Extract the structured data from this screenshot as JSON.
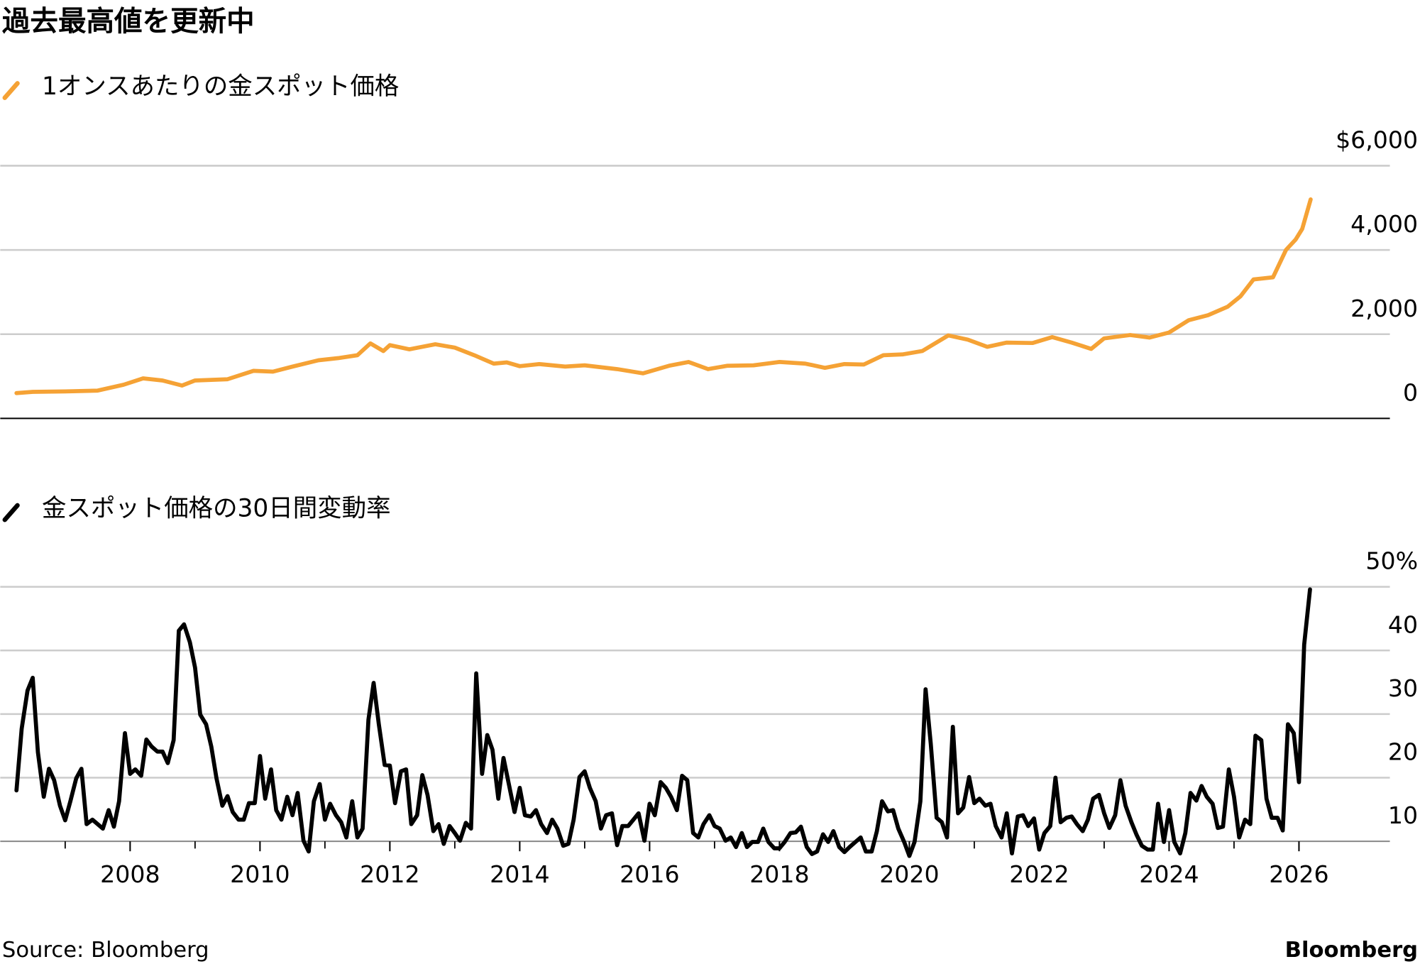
{
  "title": "過去最高値を更新中",
  "source": "Source: Bloomberg",
  "brand": "Bloomberg",
  "chart_data": [
    {
      "type": "line",
      "x": [
        2006.25,
        2006.5,
        2007,
        2007.5,
        2007.9,
        2008.2,
        2008.5,
        2008.8,
        2009,
        2009.5,
        2009.9,
        2010.2,
        2010.5,
        2010.9,
        2011.2,
        2011.5,
        2011.7,
        2011.9,
        2012,
        2012.3,
        2012.7,
        2013,
        2013.3,
        2013.6,
        2013.8,
        2014,
        2014.3,
        2014.7,
        2015,
        2015.5,
        2015.9,
        2016.3,
        2016.6,
        2016.9,
        2017.2,
        2017.6,
        2018,
        2018.4,
        2018.7,
        2019,
        2019.3,
        2019.6,
        2019.9,
        2020.2,
        2020.6,
        2020.9,
        2021.2,
        2021.5,
        2021.9,
        2022.2,
        2022.5,
        2022.8,
        2023,
        2023.4,
        2023.7,
        2024,
        2024.3,
        2024.6,
        2024.9,
        2025.1,
        2025.3,
        2025.6,
        2025.8,
        2025.95,
        2026.05,
        2026.18
      ],
      "series": [
        {
          "name": "1オンスあたりの金スポット価格",
          "color": "#f5a235",
          "values": [
            600,
            630,
            640,
            660,
            800,
            950,
            900,
            780,
            900,
            930,
            1130,
            1110,
            1230,
            1380,
            1430,
            1500,
            1780,
            1600,
            1740,
            1640,
            1760,
            1680,
            1500,
            1300,
            1330,
            1240,
            1290,
            1230,
            1260,
            1170,
            1070,
            1250,
            1340,
            1170,
            1250,
            1260,
            1340,
            1300,
            1200,
            1290,
            1280,
            1500,
            1520,
            1600,
            1970,
            1870,
            1700,
            1800,
            1790,
            1930,
            1800,
            1650,
            1900,
            1980,
            1920,
            2040,
            2330,
            2450,
            2650,
            2900,
            3300,
            3350,
            4000,
            4250,
            4500,
            5200
          ]
        }
      ],
      "xlim": [
        2006,
        2027.4
      ],
      "ylim": [
        0,
        6000
      ],
      "yticks": [
        0,
        {
          "value": 2000,
          "label": "2,000"
        },
        {
          "value": 4000,
          "label": "4,000"
        },
        {
          "value": 6000,
          "label": "$6,000"
        }
      ],
      "grid": true
    },
    {
      "type": "line",
      "x": [
        2006.25,
        2006.33,
        2006.42,
        2006.5,
        2006.58,
        2006.67,
        2006.75,
        2006.83,
        2006.92,
        2007,
        2007.08,
        2007.17,
        2007.25,
        2007.33,
        2007.42,
        2007.5,
        2007.58,
        2007.67,
        2007.75,
        2007.83,
        2007.92,
        2008,
        2008.08,
        2008.17,
        2008.25,
        2008.33,
        2008.42,
        2008.5,
        2008.58,
        2008.67,
        2008.75,
        2008.83,
        2008.92,
        2009,
        2009.08,
        2009.17,
        2009.25,
        2009.33,
        2009.42,
        2009.5,
        2009.58,
        2009.67,
        2009.75,
        2009.83,
        2009.92,
        2010,
        2010.08,
        2010.17,
        2010.25,
        2010.33,
        2010.42,
        2010.5,
        2010.58,
        2010.67,
        2010.75,
        2010.83,
        2010.92,
        2011,
        2011.08,
        2011.17,
        2011.25,
        2011.33,
        2011.42,
        2011.5,
        2011.58,
        2011.67,
        2011.75,
        2011.83,
        2011.92,
        2012,
        2012.08,
        2012.17,
        2012.25,
        2012.33,
        2012.42,
        2012.5,
        2012.58,
        2012.67,
        2012.75,
        2012.83,
        2012.92,
        2013,
        2013.08,
        2013.17,
        2013.25,
        2013.33,
        2013.42,
        2013.5,
        2013.58,
        2013.67,
        2013.75,
        2013.83,
        2013.92,
        2014,
        2014.08,
        2014.17,
        2014.25,
        2014.33,
        2014.42,
        2014.5,
        2014.58,
        2014.67,
        2014.75,
        2014.83,
        2014.92,
        2015,
        2015.08,
        2015.17,
        2015.25,
        2015.33,
        2015.42,
        2015.5,
        2015.58,
        2015.67,
        2015.75,
        2015.83,
        2015.92,
        2016,
        2016.08,
        2016.17,
        2016.25,
        2016.33,
        2016.42,
        2016.5,
        2016.58,
        2016.67,
        2016.75,
        2016.83,
        2016.92,
        2017,
        2017.08,
        2017.17,
        2017.25,
        2017.33,
        2017.42,
        2017.5,
        2017.58,
        2017.67,
        2017.75,
        2017.83,
        2017.92,
        2018,
        2018.08,
        2018.17,
        2018.25,
        2018.33,
        2018.42,
        2018.5,
        2018.58,
        2018.67,
        2018.75,
        2018.83,
        2018.92,
        2019,
        2019.08,
        2019.17,
        2019.25,
        2019.33,
        2019.42,
        2019.5,
        2019.58,
        2019.67,
        2019.75,
        2019.83,
        2019.92,
        2020,
        2020.08,
        2020.17,
        2020.25,
        2020.33,
        2020.42,
        2020.5,
        2020.58,
        2020.67,
        2020.75,
        2020.83,
        2020.92,
        2021,
        2021.08,
        2021.17,
        2021.25,
        2021.33,
        2021.42,
        2021.5,
        2021.58,
        2021.67,
        2021.75,
        2021.83,
        2021.92,
        2022,
        2022.08,
        2022.17,
        2022.25,
        2022.33,
        2022.42,
        2022.5,
        2022.58,
        2022.67,
        2022.75,
        2022.83,
        2022.92,
        2023,
        2023.08,
        2023.17,
        2023.25,
        2023.33,
        2023.42,
        2023.5,
        2023.58,
        2023.67,
        2023.75,
        2023.83,
        2023.92,
        2024,
        2024.08,
        2024.17,
        2024.25,
        2024.33,
        2024.42,
        2024.5,
        2024.58,
        2024.67,
        2024.75,
        2024.83,
        2024.92,
        2025,
        2025.08,
        2025.17,
        2025.25,
        2025.33,
        2025.42,
        2025.5,
        2025.58,
        2025.67,
        2025.75,
        2025.83,
        2025.92,
        2026,
        2026.08,
        2026.17
      ],
      "series": [
        {
          "name": "金スポット価格の30日間変動率",
          "color": "#000000",
          "values": [
            18,
            27.7,
            33.7,
            35.7,
            24,
            17,
            21.4,
            19.6,
            15.6,
            13.3,
            16.3,
            19.9,
            21.4,
            12.7,
            13.4,
            12.7,
            12,
            14.9,
            12.3,
            16.3,
            27,
            20.6,
            21.3,
            20.3,
            26,
            24.9,
            24.1,
            24.1,
            22.3,
            25.9,
            43.1,
            44.1,
            41.3,
            37.3,
            29.9,
            28.4,
            24.9,
            19.9,
            15.6,
            17.1,
            14.6,
            13.4,
            13.4,
            16,
            16,
            23.4,
            16.7,
            21.3,
            14.9,
            13.4,
            17,
            14.1,
            17.6,
            10.1,
            8.4,
            16.3,
            19,
            13.4,
            15.9,
            14.1,
            13,
            10.6,
            16.3,
            10.6,
            12,
            29.1,
            34.9,
            28.4,
            22,
            21.9,
            16,
            21,
            21.3,
            12.7,
            14.1,
            20.4,
            17.3,
            11.6,
            12.7,
            9.6,
            12.4,
            11.3,
            10.1,
            12.9,
            12,
            36.4,
            20.6,
            26.7,
            24.4,
            16.7,
            23.1,
            19.1,
            14.6,
            18.4,
            14.1,
            13.9,
            14.9,
            12.7,
            11.3,
            13.4,
            12,
            9.3,
            9.6,
            13.4,
            20.1,
            21,
            18.4,
            16.3,
            12,
            14.1,
            14.4,
            9.4,
            12.4,
            12.4,
            13.4,
            14.4,
            10.1,
            15.9,
            14.1,
            19.3,
            18.4,
            17,
            14.9,
            20.3,
            19.6,
            11.3,
            10.6,
            12.7,
            14.1,
            12.4,
            12,
            10.1,
            10.6,
            9.1,
            11.3,
            9.1,
            9.9,
            9.9,
            12,
            9.9,
            8.9,
            8.9,
            9.9,
            11.3,
            11.4,
            12.3,
            9.1,
            8,
            8.4,
            11.1,
            9.9,
            11.6,
            9.1,
            8.3,
            9.1,
            9.9,
            10.6,
            8.4,
            8.4,
            11.6,
            16.3,
            14.7,
            14.9,
            12,
            9.9,
            7.7,
            9.9,
            16.3,
            33.9,
            25.3,
            13.7,
            13,
            10.6,
            28,
            14.4,
            15.3,
            20.1,
            16,
            16.7,
            15.6,
            15.9,
            12.4,
            10.6,
            14.4,
            8.1,
            13.9,
            14.1,
            12.4,
            13.6,
            8.7,
            11.3,
            12.4,
            20,
            13,
            13.7,
            13.9,
            12.7,
            11.6,
            13.4,
            16.7,
            17.3,
            14.4,
            12.1,
            14.1,
            19.6,
            15.6,
            13,
            11,
            9.3,
            8.7,
            8.7,
            15.9,
            9.9,
            14.9,
            9.9,
            8.1,
            11.3,
            17.6,
            16.4,
            18.7,
            17,
            15.9,
            12.1,
            12.3,
            21.3,
            17,
            10.6,
            13.4,
            12.7,
            26.6,
            25.9,
            16.7,
            13.7,
            13.7,
            11.7,
            28.4,
            27,
            19.3,
            40.9,
            49.6
          ]
        }
      ],
      "xlim": [
        2006,
        2027.4
      ],
      "ylim": [
        10,
        50
      ],
      "yticks": [
        10,
        20,
        30,
        40,
        {
          "value": 50,
          "label": "50%"
        }
      ],
      "xticks": [
        2008,
        2010,
        2012,
        2014,
        2016,
        2018,
        2020,
        2022,
        2024,
        2026
      ],
      "xminorticks": [
        2007,
        2009,
        2011,
        2013,
        2015,
        2017,
        2019,
        2021,
        2023,
        2025
      ],
      "grid": true
    }
  ]
}
